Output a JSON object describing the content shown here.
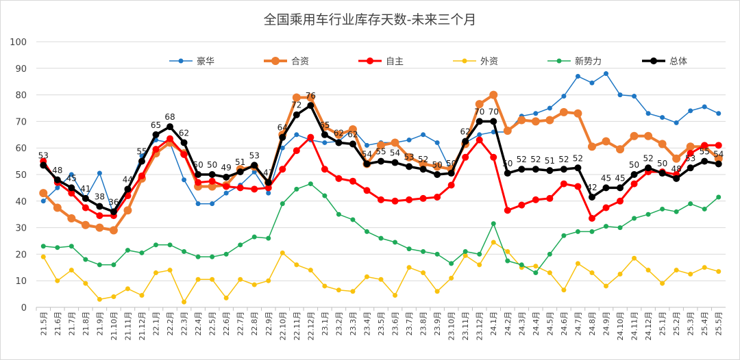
{
  "chart_data": {
    "type": "line",
    "title": "全国乘用车行业库存天数-未来三个月",
    "ylim": [
      0,
      100
    ],
    "ytick_step": 10,
    "grid": "horizontal",
    "legend_position": "top",
    "x": [
      "21.5月",
      "21.6月",
      "21.7月",
      "21.8月",
      "21.9月",
      "21.10月",
      "21.11月",
      "21.12月",
      "22.1月",
      "22.2月",
      "22.3月",
      "22.4月",
      "22.5月",
      "22.6月",
      "22.7月",
      "22.8月",
      "22.9月",
      "22.10月",
      "22.11月",
      "22.12月",
      "23.1月",
      "23.2月",
      "23.3月",
      "23.4月",
      "23.5月",
      "23.6月",
      "23.7月",
      "23.8月",
      "23.9月",
      "23.10月",
      "23.11月",
      "23.12月",
      "24.1月",
      "24.2月",
      "24.3月",
      "24.4月",
      "24.5月",
      "24.6月",
      "24.7月",
      "24.8月",
      "24.9月",
      "24.10月",
      "24.11月",
      "24.12月",
      "25.1月",
      "25.2月",
      "25.3月",
      "25.4月",
      "25.5月"
    ],
    "series": [
      {
        "name": "豪华",
        "color": "#1f77c4",
        "width": 1.5,
        "marker": 3.5,
        "values": [
          40,
          45,
          50,
          41,
          50.5,
          35,
          44,
          57,
          63,
          62,
          48,
          39,
          39,
          43,
          46,
          51,
          43,
          60,
          65,
          63,
          62,
          62.5,
          67,
          61,
          62,
          62,
          63,
          65,
          62,
          51,
          62,
          65,
          66,
          66,
          72,
          73,
          75,
          79.5,
          87,
          84.5,
          88,
          80,
          79.5,
          73,
          71.5,
          69.5,
          74,
          75.5,
          73
        ]
      },
      {
        "name": "合资",
        "color": "#ed7d31",
        "width": 4,
        "marker": 6,
        "values": [
          43,
          37.5,
          33.5,
          31,
          30,
          29,
          36.5,
          48.5,
          58,
          62,
          58,
          45.5,
          45.5,
          46,
          52,
          53,
          47,
          65,
          79,
          79,
          68,
          65,
          67,
          54,
          61,
          62,
          56.5,
          54,
          53,
          52,
          61.5,
          76.5,
          80,
          66.5,
          70.5,
          70,
          70.5,
          73.5,
          73,
          60.5,
          62.5,
          59.5,
          64.5,
          64.5,
          61.5,
          56,
          60.5,
          60.5,
          56
        ]
      },
      {
        "name": "自主",
        "color": "#ff0000",
        "width": 3,
        "marker": 5,
        "values": [
          55,
          47,
          43,
          37.5,
          34.5,
          34.5,
          42,
          49.5,
          59.5,
          63.5,
          57.5,
          47,
          47.5,
          45.5,
          45,
          44.5,
          45,
          52,
          59,
          64,
          52,
          48.5,
          47.5,
          44,
          40.5,
          40,
          40.5,
          41,
          41.5,
          46,
          56.5,
          63,
          56.5,
          36.5,
          38.5,
          40.5,
          41,
          46.5,
          45.5,
          33.5,
          37.5,
          40,
          46.5,
          51,
          51,
          50,
          58,
          61,
          61
        ]
      },
      {
        "name": "外资",
        "color": "#f9c20f",
        "width": 1.5,
        "marker": 3.5,
        "values": [
          19,
          10,
          14,
          9,
          3,
          4,
          7,
          4.5,
          13,
          14,
          2,
          10.5,
          10.5,
          3.5,
          10.5,
          8.5,
          10,
          20.5,
          16,
          14,
          8,
          6.5,
          6,
          11.5,
          10.5,
          4.5,
          15,
          13,
          6,
          11,
          19.5,
          16,
          24.5,
          21,
          15,
          15.5,
          13,
          6.5,
          16.5,
          13,
          8,
          12.5,
          18.5,
          14,
          9,
          14,
          12.5,
          15,
          13.5
        ]
      },
      {
        "name": "新势力",
        "color": "#1faa59",
        "width": 1.5,
        "marker": 3.5,
        "values": [
          23,
          22.5,
          23,
          18,
          16,
          16,
          21.5,
          20.5,
          23.5,
          23.5,
          21,
          19,
          19,
          20,
          23.5,
          26.5,
          26,
          39,
          44.5,
          46.5,
          42,
          35,
          33,
          28.5,
          26,
          24.5,
          22,
          21,
          20,
          16.5,
          21,
          20,
          31.5,
          17.5,
          16,
          13,
          20,
          27,
          28.5,
          28.5,
          30.5,
          30,
          33.5,
          35,
          37,
          36,
          39,
          37,
          41.5
        ]
      },
      {
        "name": "总体",
        "color": "#000000",
        "width": 3.5,
        "marker": 5,
        "values": [
          53.5,
          48,
          45,
          41,
          38,
          36,
          44.5,
          55,
          65,
          68,
          62,
          50,
          50,
          49,
          51,
          53.5,
          47,
          64,
          72.5,
          76,
          65,
          62,
          61.5,
          54,
          55,
          54.5,
          53,
          52,
          50,
          50.5,
          62.5,
          70,
          70,
          50.5,
          52,
          52,
          51.5,
          52,
          52.5,
          41.5,
          45,
          45,
          50,
          52.5,
          50.5,
          48.5,
          52.5,
          55,
          54
        ]
      }
    ],
    "data_labels": {
      "series": "总体",
      "values": [
        "53",
        "48",
        "45",
        "41",
        "38",
        "36",
        "44",
        "55",
        "65",
        "68",
        "62",
        "50",
        "50",
        "49",
        "51",
        "53",
        "47",
        "64",
        "72",
        "76",
        "65",
        "62",
        "62",
        "54",
        "55",
        "54",
        "53",
        "52",
        "50",
        "50",
        "62",
        "70",
        "70",
        "50",
        "52",
        "52",
        "51",
        "52",
        "52",
        "42",
        "45",
        "45",
        "50",
        "52",
        "50",
        "48",
        "53",
        "55",
        "54"
      ]
    }
  }
}
